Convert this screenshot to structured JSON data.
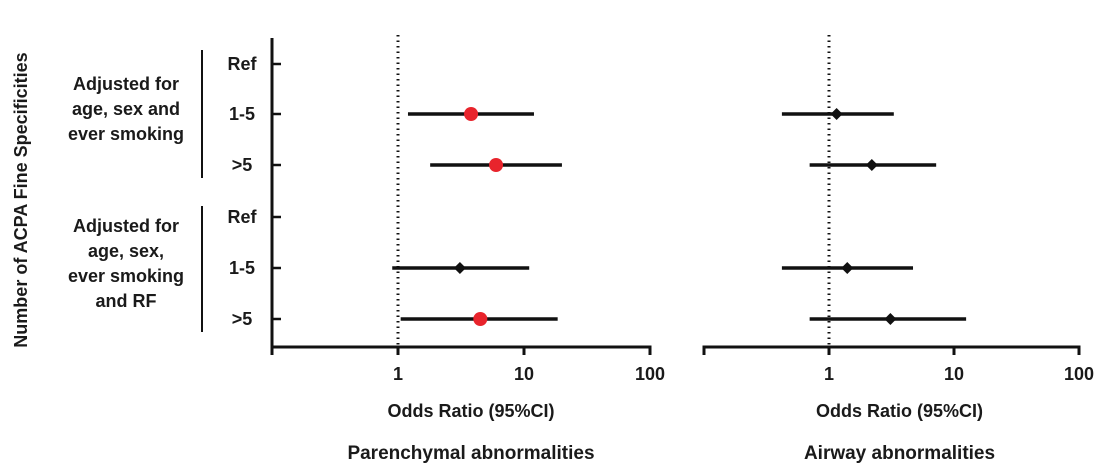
{
  "chart_data": {
    "type": "forest",
    "ylabel": "Number of ACPA Fine Specificities",
    "row_labels": [
      "Ref",
      "1-5",
      ">5",
      "Ref",
      "1-5",
      ">5"
    ],
    "groups": [
      {
        "label_lines": [
          "Adjusted for",
          "age, sex and",
          "ever smoking"
        ],
        "rows": [
          0,
          1,
          2
        ]
      },
      {
        "label_lines": [
          "Adjusted for",
          "age, sex,",
          "ever smoking",
          "and RF"
        ],
        "rows": [
          3,
          4,
          5
        ]
      }
    ],
    "x_scale": "log10",
    "xlim": [
      0.1,
      100
    ],
    "xticks": [
      1,
      10,
      100
    ],
    "xtick_labels": [
      "1",
      "10",
      "100"
    ],
    "reference_line": 1,
    "panels": [
      {
        "title": "Parenchymal abnormalities",
        "xlabel": "Odds Ratio (95%CI)",
        "points": [
          {
            "row": 1,
            "or": 3.8,
            "lo": 1.2,
            "hi": 12,
            "significant": true
          },
          {
            "row": 2,
            "or": 6.0,
            "lo": 1.8,
            "hi": 20,
            "significant": true
          },
          {
            "row": 4,
            "or": 3.1,
            "lo": 0.9,
            "hi": 11,
            "significant": false
          },
          {
            "row": 5,
            "or": 4.5,
            "lo": 1.05,
            "hi": 18.5,
            "significant": true
          }
        ]
      },
      {
        "title": "Airway abnormalities",
        "xlabel": "Odds Ratio (95%CI)",
        "points": [
          {
            "row": 1,
            "or": 1.15,
            "lo": 0.42,
            "hi": 3.3,
            "significant": false
          },
          {
            "row": 2,
            "or": 2.2,
            "lo": 0.7,
            "hi": 7.2,
            "significant": false
          },
          {
            "row": 4,
            "or": 1.4,
            "lo": 0.42,
            "hi": 4.7,
            "significant": false
          },
          {
            "row": 5,
            "or": 3.1,
            "lo": 0.7,
            "hi": 12.5,
            "significant": false
          }
        ]
      }
    ],
    "colors": {
      "significant": "#e8242c",
      "nonsignificant": "#111111",
      "line": "#111111"
    }
  }
}
